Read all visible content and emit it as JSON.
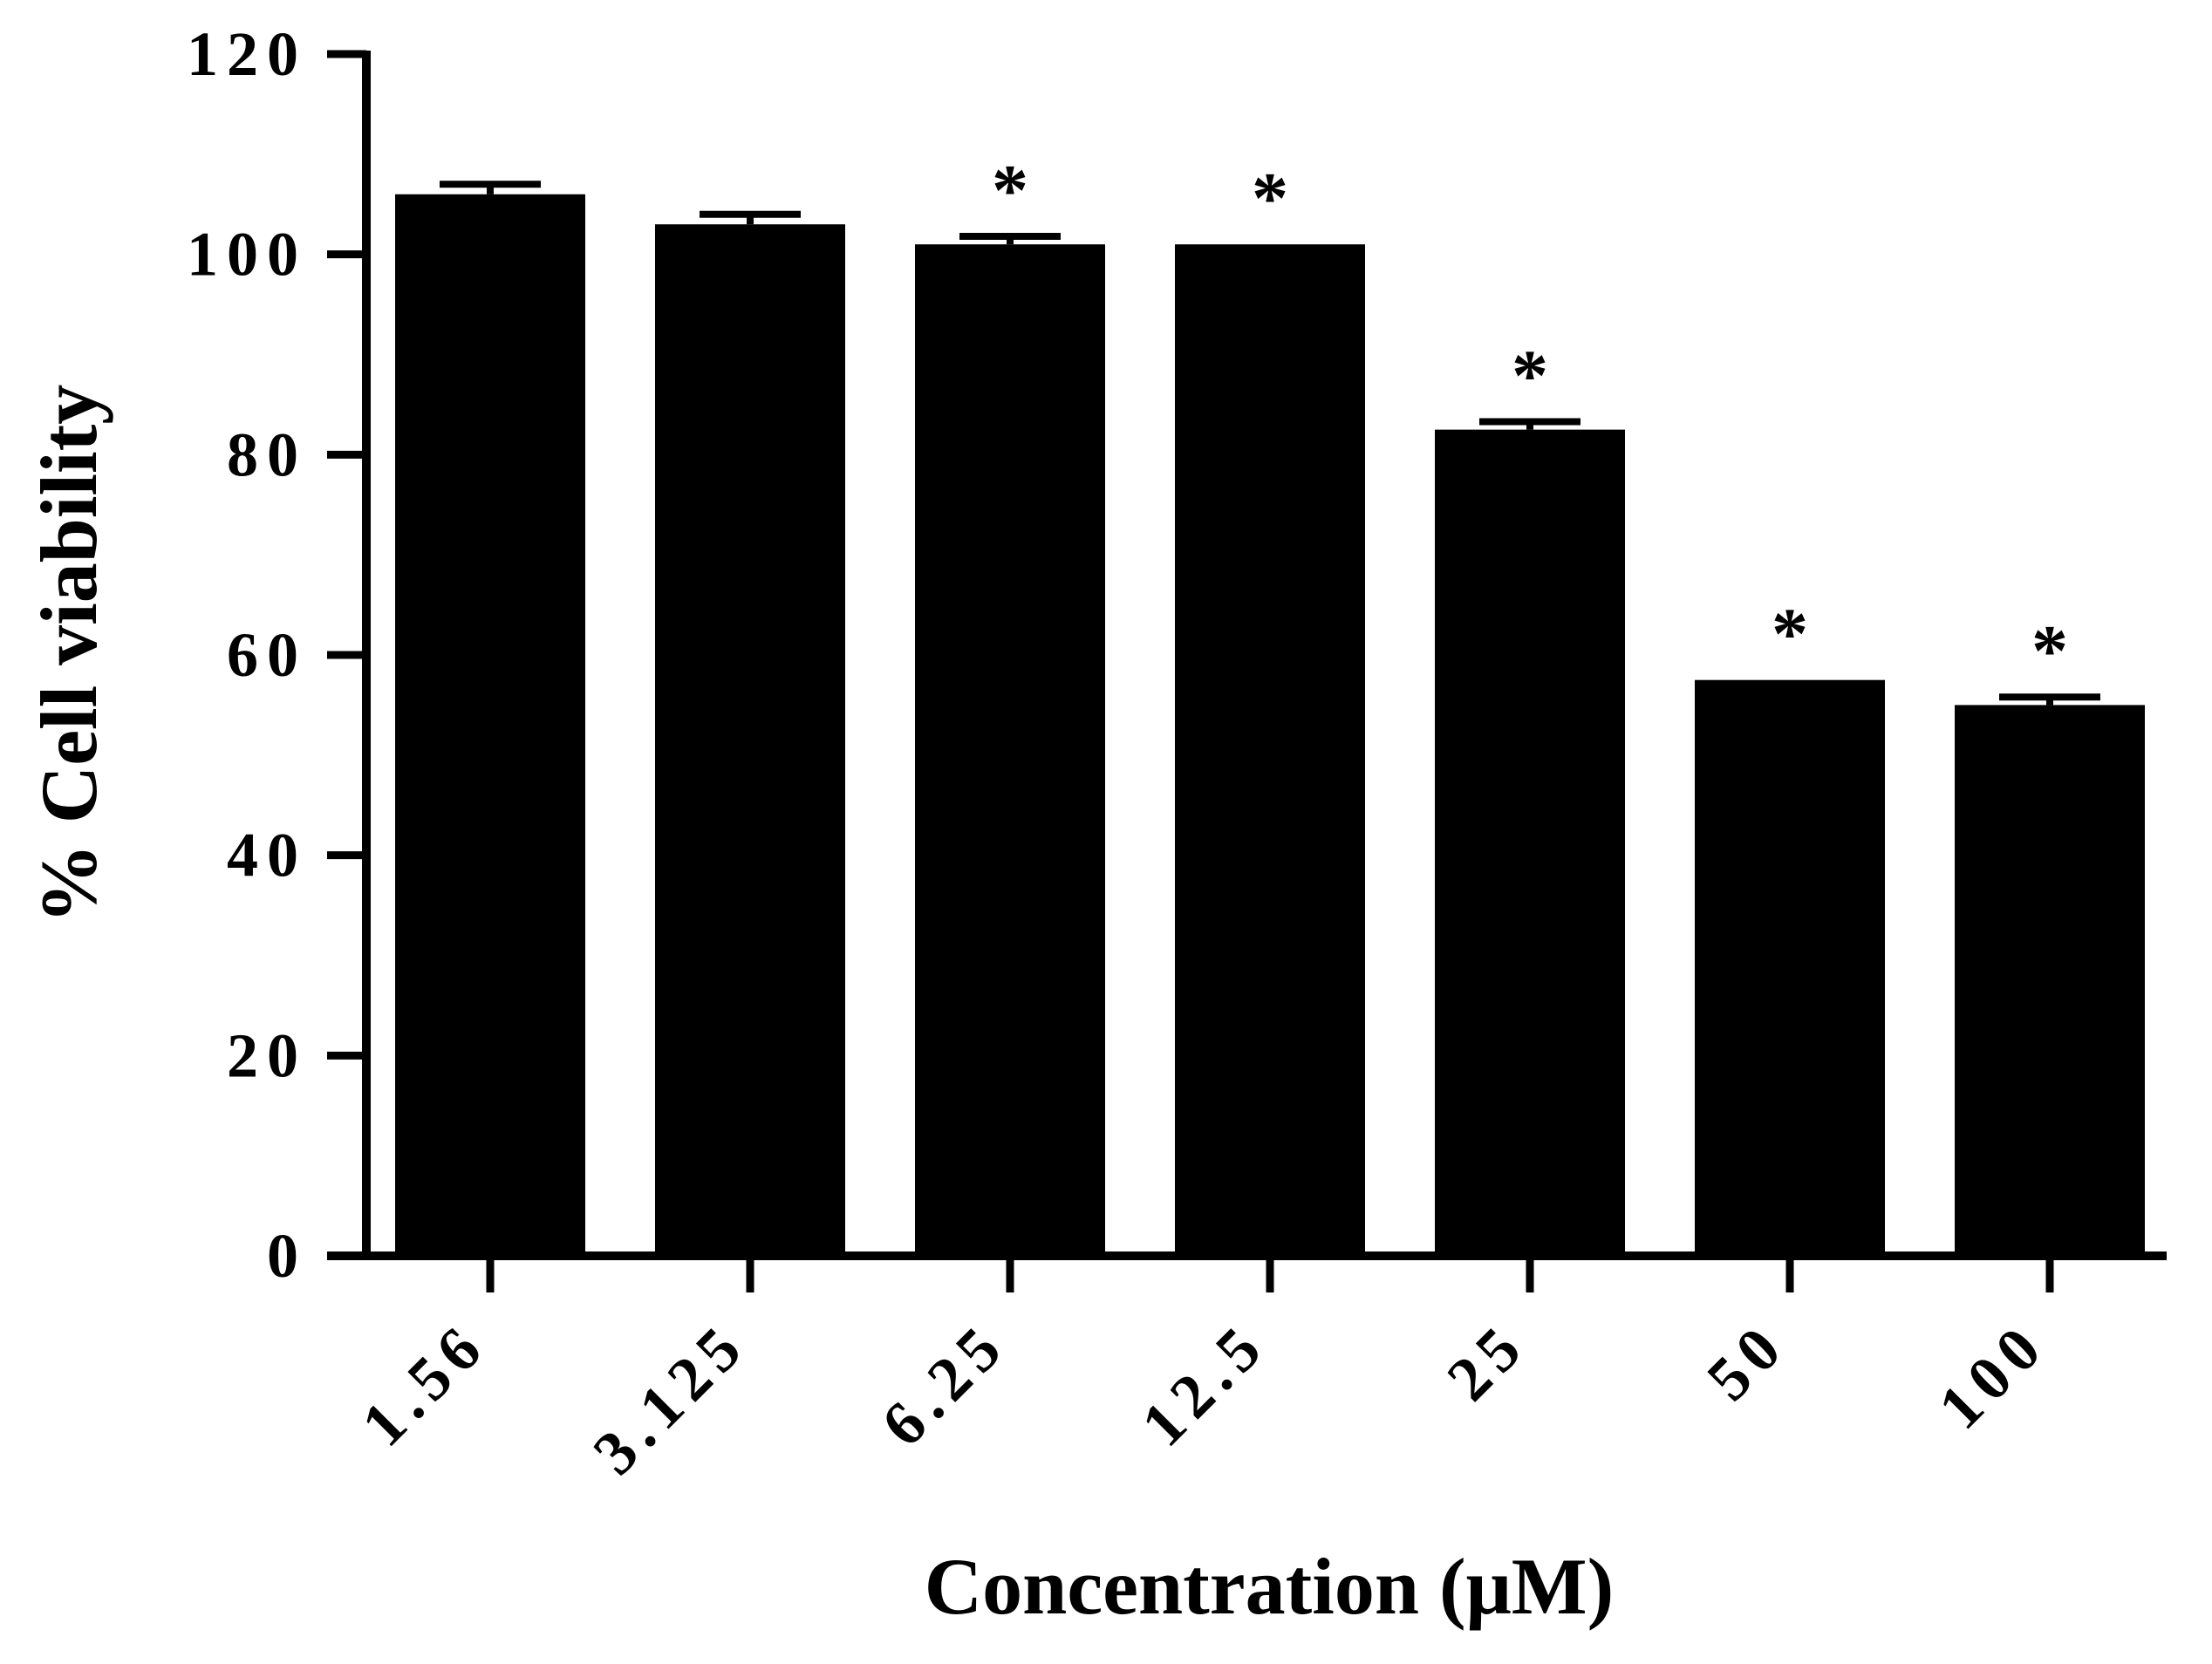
{
  "chart_data": {
    "type": "bar",
    "title": "",
    "xlabel": "Concentration (μM)",
    "ylabel": "% Cell viability",
    "categories": [
      "1.56",
      "3.125",
      "6.25",
      "12.5",
      "25",
      "50",
      "100"
    ],
    "values": [
      106,
      103,
      101,
      101,
      82.5,
      57.5,
      55
    ],
    "errors": [
      1,
      1,
      0.8,
      0,
      0.8,
      0,
      0.8
    ],
    "significance": [
      "",
      "",
      "*",
      "*",
      "*",
      "*",
      "*"
    ],
    "ylim": [
      0,
      120
    ],
    "yticks": [
      "0",
      "20",
      "40",
      "60",
      "80",
      "100",
      "120"
    ],
    "bar_color": "#000000",
    "grid": false,
    "legend": "none"
  }
}
